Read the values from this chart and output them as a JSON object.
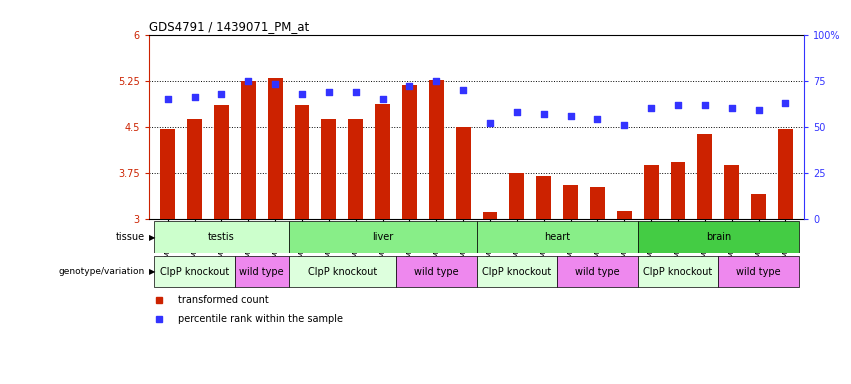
{
  "title": "GDS4791 / 1439071_PM_at",
  "samples": [
    "GSM988357",
    "GSM988358",
    "GSM988359",
    "GSM988360",
    "GSM988361",
    "GSM988362",
    "GSM988363",
    "GSM988364",
    "GSM988365",
    "GSM988366",
    "GSM988367",
    "GSM988368",
    "GSM988381",
    "GSM988382",
    "GSM988383",
    "GSM988384",
    "GSM988385",
    "GSM988386",
    "GSM988375",
    "GSM988376",
    "GSM988377",
    "GSM988378",
    "GSM988379",
    "GSM988380"
  ],
  "bar_values": [
    4.47,
    4.62,
    4.85,
    5.25,
    5.3,
    4.85,
    4.63,
    4.63,
    4.87,
    5.18,
    5.26,
    4.5,
    3.12,
    3.75,
    3.7,
    3.55,
    3.52,
    3.13,
    3.88,
    3.92,
    4.38,
    3.88,
    3.4,
    4.47
  ],
  "percentile_values": [
    65,
    66,
    68,
    75,
    73,
    68,
    69,
    69,
    65,
    72,
    75,
    70,
    52,
    58,
    57,
    56,
    54,
    51,
    60,
    62,
    62,
    60,
    59,
    63
  ],
  "ylim_left": [
    3,
    6
  ],
  "ylim_right": [
    0,
    100
  ],
  "yticks_left": [
    3,
    3.75,
    4.5,
    5.25,
    6
  ],
  "ytick_labels_left": [
    "3",
    "3.75",
    "4.5",
    "5.25",
    "6"
  ],
  "yticks_right": [
    0,
    25,
    50,
    75,
    100
  ],
  "ytick_labels_right": [
    "0",
    "25",
    "50",
    "75",
    "100%"
  ],
  "bar_color": "#cc2200",
  "percentile_color": "#3333ff",
  "tissue_groups": [
    {
      "name": "testis",
      "start": 0,
      "end": 5,
      "color": "#ccffcc"
    },
    {
      "name": "liver",
      "start": 5,
      "end": 12,
      "color": "#88ee88"
    },
    {
      "name": "heart",
      "start": 12,
      "end": 18,
      "color": "#88ee88"
    },
    {
      "name": "brain",
      "start": 18,
      "end": 24,
      "color": "#44cc44"
    }
  ],
  "geno_groups": [
    {
      "name": "ClpP knockout",
      "start": 0,
      "end": 3,
      "color": "#ddffdd"
    },
    {
      "name": "wild type",
      "start": 3,
      "end": 5,
      "color": "#ee88ee"
    },
    {
      "name": "ClpP knockout",
      "start": 5,
      "end": 9,
      "color": "#ddffdd"
    },
    {
      "name": "wild type",
      "start": 9,
      "end": 12,
      "color": "#ee88ee"
    },
    {
      "name": "ClpP knockout",
      "start": 12,
      "end": 15,
      "color": "#ddffdd"
    },
    {
      "name": "wild type",
      "start": 15,
      "end": 18,
      "color": "#ee88ee"
    },
    {
      "name": "ClpP knockout",
      "start": 18,
      "end": 21,
      "color": "#ddffdd"
    },
    {
      "name": "wild type",
      "start": 21,
      "end": 24,
      "color": "#ee88ee"
    }
  ],
  "legend": [
    {
      "label": "transformed count",
      "color": "#cc2200"
    },
    {
      "label": "percentile rank within the sample",
      "color": "#3333ff"
    }
  ]
}
